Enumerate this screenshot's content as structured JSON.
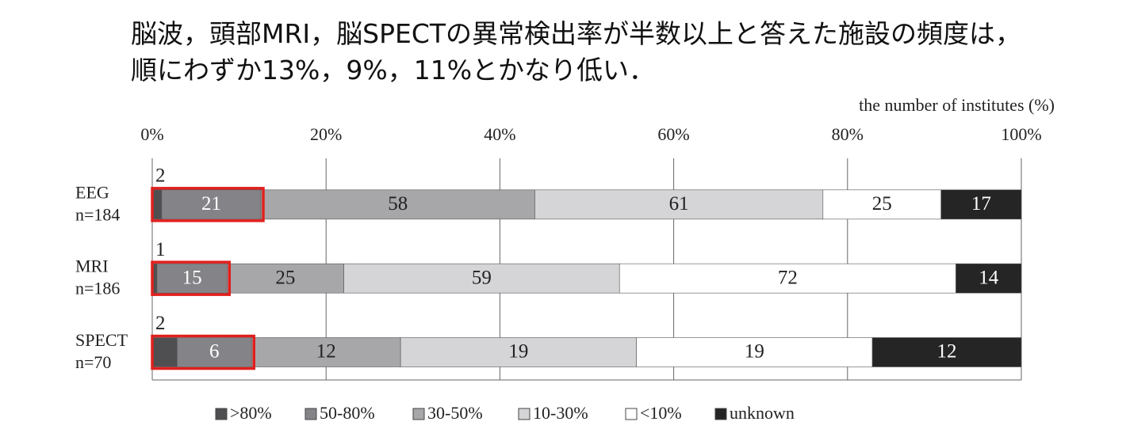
{
  "chart_data": {
    "type": "bar",
    "orientation": "horizontal",
    "stacking": "percent",
    "title": [
      "脳波，頭部MRI，脳SPECTの異常検出率が半数以上と答えた施設の頻度は，",
      "順にわずか13%，9%，11%とかなり低い．"
    ],
    "x_label": "the number of institutes (%)",
    "categories": [
      "EEG",
      "MRI",
      "SPECT"
    ],
    "category_notes": [
      "n=184",
      "n=186",
      "n=70"
    ],
    "series": [
      {
        "name": ">80%",
        "color": "#4f4f51",
        "values": [
          2,
          1,
          2
        ]
      },
      {
        "name": "50-80%",
        "color": "#848488",
        "values": [
          21,
          15,
          6
        ]
      },
      {
        "name": "30-50%",
        "color": "#a7a7aa",
        "values": [
          58,
          25,
          12
        ]
      },
      {
        "name": "10-30%",
        "color": "#d5d5d8",
        "values": [
          61,
          59,
          19
        ]
      },
      {
        "name": "<10%",
        "color": "#ffffff",
        "values": [
          25,
          72,
          19
        ]
      },
      {
        "name": "unknown",
        "color": "#252525",
        "values": [
          17,
          14,
          12
        ]
      }
    ],
    "xlim": [
      0,
      100
    ],
    "xticks": [
      {
        "value": 0,
        "label": "0%"
      },
      {
        "value": 20,
        "label": "20%"
      },
      {
        "value": 40,
        "label": "40%"
      },
      {
        "value": 60,
        "label": "60%"
      },
      {
        "value": 80,
        "label": "80%"
      },
      {
        "value": 100,
        "label": "100%"
      }
    ],
    "grid": true,
    "legend": "bottom",
    "highlight": {
      "color": "#e0201e",
      "series": [
        0,
        1
      ]
    }
  }
}
